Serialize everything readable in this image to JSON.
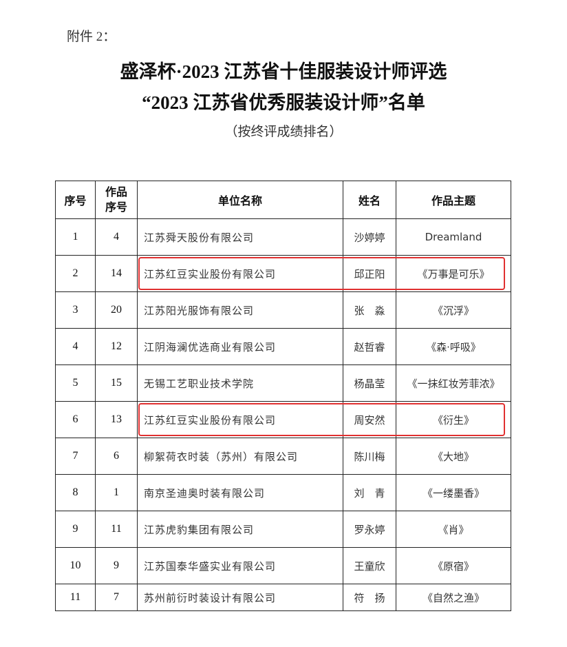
{
  "attachment": "附件 2：",
  "title_line1": "盛泽杯·2023 江苏省十佳服装设计师评选",
  "title_line2": "“2023 江苏省优秀服装设计师”名单",
  "subtitle": "（按终评成绩排名）",
  "highlight_color": "#e03030",
  "table": {
    "headers": [
      "序号",
      "作品序号",
      "单位名称",
      "姓名",
      "作品主题"
    ],
    "rows": [
      {
        "rank": "1",
        "work_no": "4",
        "unit": "江苏舜天股份有限公司",
        "name": "沙婷婷",
        "theme": "Dreamland",
        "highlighted": false
      },
      {
        "rank": "2",
        "work_no": "14",
        "unit": "江苏红豆实业股份有限公司",
        "name": "邱正阳",
        "theme": "《万事是可乐》",
        "highlighted": true
      },
      {
        "rank": "3",
        "work_no": "20",
        "unit": "江苏阳光服饰有限公司",
        "name": "张　淼",
        "theme": "《沉浮》",
        "highlighted": false
      },
      {
        "rank": "4",
        "work_no": "12",
        "unit": "江阴海澜优选商业有限公司",
        "name": "赵哲睿",
        "theme": "《森·呼吸》",
        "highlighted": false
      },
      {
        "rank": "5",
        "work_no": "15",
        "unit": "无锡工艺职业技术学院",
        "name": "杨晶莹",
        "theme": "《一抹红妆芳菲浓》",
        "highlighted": false
      },
      {
        "rank": "6",
        "work_no": "13",
        "unit": "江苏红豆实业股份有限公司",
        "name": "周安然",
        "theme": "《衍生》",
        "highlighted": true
      },
      {
        "rank": "7",
        "work_no": "6",
        "unit": "柳絮荷衣时装（苏州）有限公司",
        "name": "陈川梅",
        "theme": "《大地》",
        "highlighted": false
      },
      {
        "rank": "8",
        "work_no": "1",
        "unit": "南京圣迪奥时装有限公司",
        "name": "刘　青",
        "theme": "《一缕墨香》",
        "highlighted": false
      },
      {
        "rank": "9",
        "work_no": "11",
        "unit": "江苏虎豹集团有限公司",
        "name": "罗永婷",
        "theme": "《肖》",
        "highlighted": false
      },
      {
        "rank": "10",
        "work_no": "9",
        "unit": "江苏国泰华盛实业有限公司",
        "name": "王童欣",
        "theme": "《原宿》",
        "highlighted": false
      },
      {
        "rank": "11",
        "work_no": "7",
        "unit": "苏州前衍时装设计有限公司",
        "name": "符　扬",
        "theme": "《自然之渔》",
        "highlighted": false
      }
    ]
  }
}
